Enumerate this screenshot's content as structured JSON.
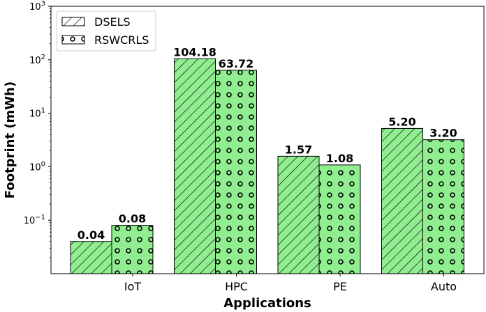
{
  "chart_data": {
    "type": "bar",
    "title": "",
    "xlabel": "Applications",
    "ylabel": "Footprint (mWh)",
    "yscale": "log",
    "ylim": [
      0.01,
      1000
    ],
    "yticks": [
      {
        "value": 0.1,
        "base": "10",
        "exp": "−1"
      },
      {
        "value": 1,
        "base": "10",
        "exp": "0"
      },
      {
        "value": 10,
        "base": "10",
        "exp": "1"
      },
      {
        "value": 100,
        "base": "10",
        "exp": "2"
      },
      {
        "value": 1000,
        "base": "10",
        "exp": "3"
      }
    ],
    "categories": [
      "IoT",
      "HPC",
      "PE",
      "Auto"
    ],
    "series": [
      {
        "name": "DSELS",
        "values": [
          0.04,
          104.18,
          1.57,
          5.2
        ],
        "labels": [
          "0.04",
          "104.18",
          "1.57",
          "5.20"
        ],
        "pattern": "hatch"
      },
      {
        "name": "RSWCRLS",
        "values": [
          0.08,
          63.72,
          1.08,
          3.2
        ],
        "labels": [
          "0.08",
          "63.72",
          "1.08",
          "3.20"
        ],
        "pattern": "dots"
      }
    ],
    "bar_color": "#90EE90",
    "legend_position": "upper-left",
    "grid": false
  }
}
